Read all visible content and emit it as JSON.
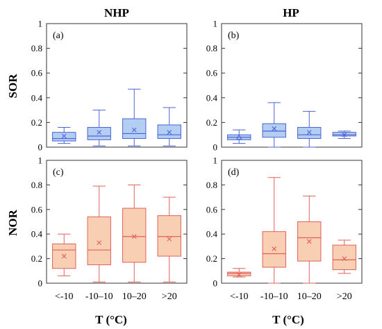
{
  "figure": {
    "col_titles": [
      "NHP",
      "HP"
    ],
    "row_labels": [
      "SOR",
      "NOR"
    ],
    "x_categories": [
      "<-10",
      "-10–10",
      "10–20",
      ">20"
    ],
    "xlabel": "T (°C)",
    "y_ticks": [
      "0",
      "0.2",
      "0.4",
      "0.6",
      "0.8",
      "1"
    ],
    "colors": {
      "blue_fill": "#b4cdf2",
      "blue_line": "#4a63d4",
      "orange_fill": "#f8cfb2",
      "orange_line": "#e0605a"
    }
  },
  "chart_data": [
    {
      "type": "box",
      "panel": "(a)",
      "row": "SOR",
      "column": "NHP",
      "categories": [
        "<-10",
        "-10–10",
        "10–20",
        ">20"
      ],
      "ylim": [
        0,
        1
      ],
      "boxes": [
        {
          "min": 0.03,
          "q1": 0.05,
          "median": 0.07,
          "q3": 0.12,
          "max": 0.16,
          "mean": 0.09
        },
        {
          "min": 0.01,
          "q1": 0.06,
          "median": 0.09,
          "q3": 0.16,
          "max": 0.3,
          "mean": 0.12
        },
        {
          "min": 0.01,
          "q1": 0.07,
          "median": 0.11,
          "q3": 0.23,
          "max": 0.47,
          "mean": 0.14
        },
        {
          "min": 0.01,
          "q1": 0.07,
          "median": 0.1,
          "q3": 0.18,
          "max": 0.32,
          "mean": 0.12
        }
      ]
    },
    {
      "type": "box",
      "panel": "(b)",
      "row": "SOR",
      "column": "HP",
      "categories": [
        "<-10",
        "-10–10",
        "10–20",
        ">20"
      ],
      "ylim": [
        0,
        1
      ],
      "boxes": [
        {
          "min": 0.03,
          "q1": 0.06,
          "median": 0.08,
          "q3": 0.1,
          "max": 0.14,
          "mean": 0.08
        },
        {
          "min": 0.0,
          "q1": 0.08,
          "median": 0.13,
          "q3": 0.19,
          "max": 0.36,
          "mean": 0.15
        },
        {
          "min": 0.0,
          "q1": 0.07,
          "median": 0.1,
          "q3": 0.16,
          "max": 0.29,
          "mean": 0.12
        },
        {
          "min": 0.07,
          "q1": 0.09,
          "median": 0.1,
          "q3": 0.12,
          "max": 0.13,
          "mean": 0.1
        }
      ]
    },
    {
      "type": "box",
      "panel": "(c)",
      "row": "NOR",
      "column": "NHP",
      "categories": [
        "<-10",
        "-10–10",
        "10–20",
        ">20"
      ],
      "ylim": [
        0,
        1
      ],
      "boxes": [
        {
          "min": 0.06,
          "q1": 0.12,
          "median": 0.27,
          "q3": 0.32,
          "max": 0.4,
          "mean": 0.22
        },
        {
          "min": 0.01,
          "q1": 0.15,
          "median": 0.27,
          "q3": 0.54,
          "max": 0.79,
          "mean": 0.33
        },
        {
          "min": 0.01,
          "q1": 0.17,
          "median": 0.38,
          "q3": 0.61,
          "max": 0.8,
          "mean": 0.38
        },
        {
          "min": 0.01,
          "q1": 0.22,
          "median": 0.38,
          "q3": 0.55,
          "max": 0.7,
          "mean": 0.36
        }
      ]
    },
    {
      "type": "box",
      "panel": "(d)",
      "row": "NOR",
      "column": "HP",
      "categories": [
        "<-10",
        "-10–10",
        "10–20",
        ">20"
      ],
      "ylim": [
        0,
        1
      ],
      "boxes": [
        {
          "min": 0.05,
          "q1": 0.06,
          "median": 0.08,
          "q3": 0.09,
          "max": 0.12,
          "mean": 0.07
        },
        {
          "min": 0.0,
          "q1": 0.13,
          "median": 0.24,
          "q3": 0.42,
          "max": 0.86,
          "mean": 0.28
        },
        {
          "min": 0.0,
          "q1": 0.18,
          "median": 0.37,
          "q3": 0.5,
          "max": 0.71,
          "mean": 0.34
        },
        {
          "min": 0.08,
          "q1": 0.11,
          "median": 0.19,
          "q3": 0.31,
          "max": 0.35,
          "mean": 0.2
        }
      ]
    }
  ]
}
